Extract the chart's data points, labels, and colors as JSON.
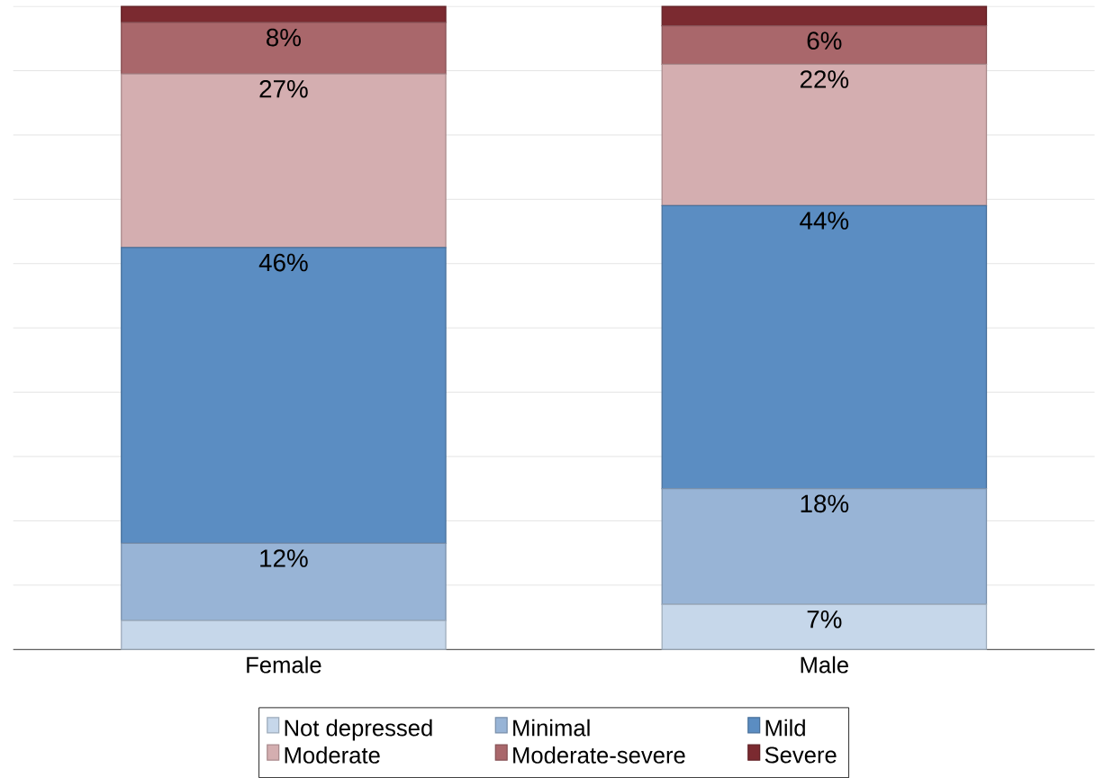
{
  "chart_data": {
    "type": "bar",
    "stacked": true,
    "categories": [
      "Female",
      "Male"
    ],
    "series": [
      {
        "name": "Not depressed",
        "color": "#c6d7ea",
        "values": [
          4.5,
          7
        ],
        "value_labels": [
          null,
          "7%"
        ]
      },
      {
        "name": "Minimal",
        "color": "#98b4d6",
        "values": [
          12,
          18
        ],
        "value_labels": [
          "12%",
          "18%"
        ]
      },
      {
        "name": "Mild",
        "color": "#5b8dc2",
        "values": [
          46,
          44
        ],
        "value_labels": [
          "46%",
          "44%"
        ]
      },
      {
        "name": "Moderate",
        "color": "#d4aeb0",
        "values": [
          27,
          22
        ],
        "value_labels": [
          "27%",
          "22%"
        ]
      },
      {
        "name": "Moderate-severe",
        "color": "#a9676b",
        "values": [
          8,
          6
        ],
        "value_labels": [
          "8%",
          "6%"
        ]
      },
      {
        "name": "Severe",
        "color": "#7b2a30",
        "values": [
          2.5,
          3
        ],
        "value_labels": [
          null,
          null
        ]
      }
    ],
    "grid": "y",
    "tick_labels": "x",
    "legend": "bottom"
  }
}
